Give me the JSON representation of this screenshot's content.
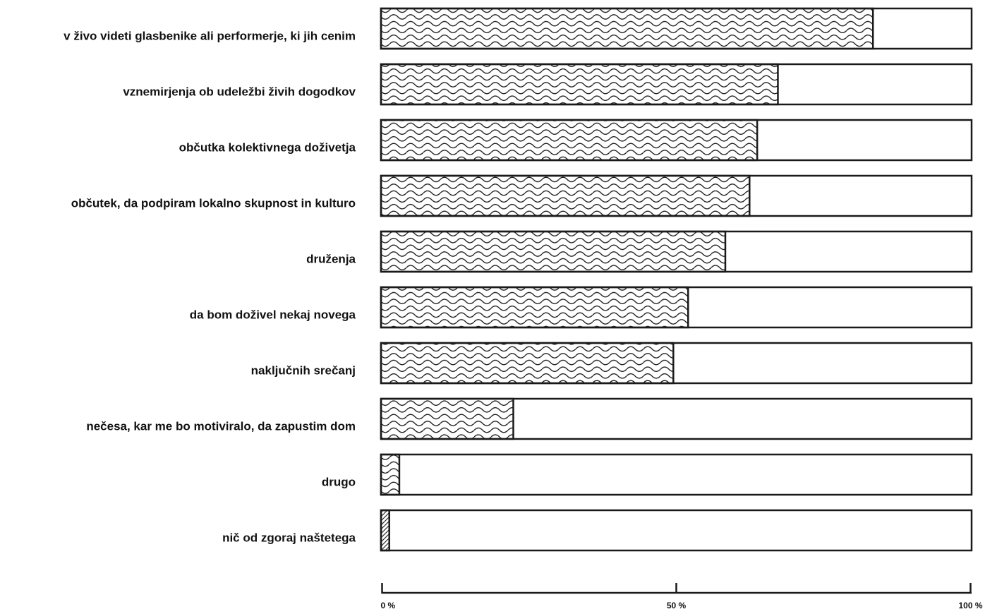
{
  "chart_data": {
    "type": "bar",
    "orientation": "horizontal",
    "categories": [
      "v živo videti glasbenike ali performerje, ki jih cenim",
      "vznemirjenja ob udeležbi živih dogodkov",
      "občutka kolektivnega doživetja",
      "občutek, da podpiram lokalno skupnost in kulturo",
      "druženja",
      "da bom doživel nekaj novega",
      "naključnih srečanj",
      "nečesa, kar me bo motiviralo, da zapustim dom",
      "drugo",
      "nič od zgoraj naštetega"
    ],
    "values": [
      83.3,
      67.2,
      63.7,
      62.4,
      58.3,
      52.0,
      49.5,
      22.4,
      3.1,
      1.4
    ],
    "xlim": [
      0,
      100
    ],
    "ticks": [
      {
        "value": 0,
        "label": "0 %"
      },
      {
        "value": 50,
        "label": "50 %"
      },
      {
        "value": 100,
        "label": "100 %"
      }
    ],
    "fill_pattern": "wave-hatch",
    "colors": {
      "stroke": "#1a1a1a",
      "background": "#ffffff"
    }
  }
}
